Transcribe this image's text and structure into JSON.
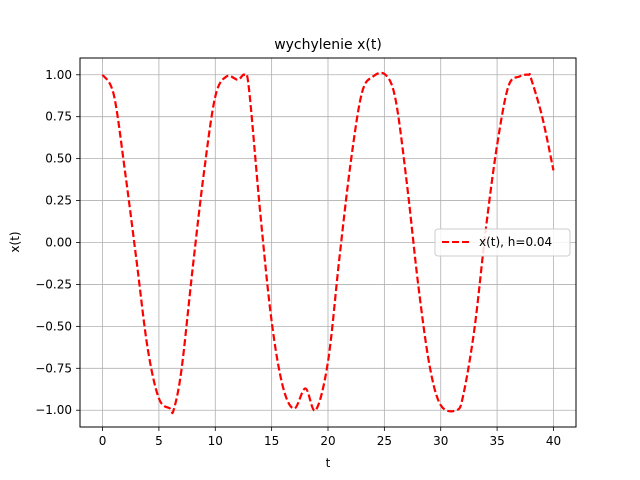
{
  "chart_data": {
    "type": "line",
    "title": "wychylenie x(t)",
    "xlabel": "t",
    "ylabel": "x(t)",
    "xlim": [
      -2,
      42
    ],
    "ylim": [
      -1.1,
      1.1
    ],
    "xticks": [
      0,
      5,
      10,
      15,
      20,
      25,
      30,
      35,
      40
    ],
    "xtick_labels": [
      "0",
      "5",
      "10",
      "15",
      "20",
      "25",
      "30",
      "35",
      "40"
    ],
    "yticks": [
      -1.0,
      -0.75,
      -0.5,
      -0.25,
      0.0,
      0.25,
      0.5,
      0.75,
      1.0
    ],
    "ytick_labels": [
      "−1.00",
      "−0.75",
      "−0.50",
      "−0.25",
      "0.00",
      "0.25",
      "0.50",
      "0.75",
      "1.00"
    ],
    "grid": true,
    "legend_position": "center-right",
    "series": [
      {
        "name": "x(t), h=0.04",
        "color": "#ff0000",
        "style": "dashed",
        "x": [
          0,
          1,
          2,
          3,
          4,
          5,
          6,
          6.3,
          7,
          8,
          9,
          10,
          11,
          12,
          12.6,
          13,
          14,
          15,
          16,
          17,
          18,
          18.9,
          20,
          21,
          22,
          23,
          24,
          25.1,
          26,
          27,
          28,
          29,
          30,
          31.4,
          32,
          33,
          34,
          35,
          36,
          37,
          37.8,
          38,
          39,
          40
        ],
        "y": [
          1.0,
          0.88,
          0.42,
          -0.1,
          -0.63,
          -0.93,
          -0.99,
          -1.0,
          -0.76,
          -0.15,
          0.42,
          0.87,
          0.99,
          0.97,
          1.0,
          0.91,
          0.17,
          -0.47,
          -0.86,
          -0.99,
          -0.87,
          -1.0,
          -0.71,
          -0.1,
          0.47,
          0.89,
          0.99,
          1.0,
          0.85,
          0.35,
          -0.25,
          -0.73,
          -0.97,
          -1.0,
          -0.91,
          -0.51,
          0.08,
          0.58,
          0.93,
          0.99,
          1.0,
          0.98,
          0.75,
          0.43
        ]
      }
    ]
  }
}
